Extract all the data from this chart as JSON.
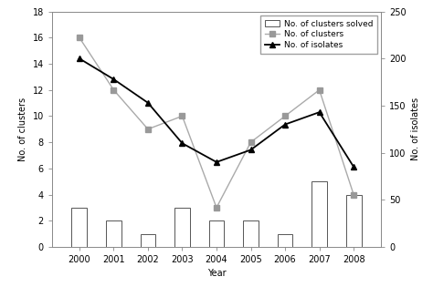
{
  "years": [
    2000,
    2001,
    2002,
    2003,
    2004,
    2005,
    2006,
    2007,
    2008
  ],
  "bars_solved": [
    3,
    2,
    1,
    3,
    2,
    2,
    1,
    5,
    4
  ],
  "clusters": [
    16,
    12,
    9,
    10,
    3,
    8,
    10,
    12,
    4
  ],
  "isolates": [
    200,
    178,
    153,
    110,
    90,
    103,
    130,
    143,
    85
  ],
  "left_ylim": [
    0,
    18
  ],
  "right_ylim": [
    0,
    250
  ],
  "left_yticks": [
    0,
    2,
    4,
    6,
    8,
    10,
    12,
    14,
    16,
    18
  ],
  "right_yticks": [
    0,
    50,
    100,
    150,
    200,
    250
  ],
  "xlabel": "Year",
  "ylabel_left": "No. of clusters",
  "ylabel_right": "No. of isolates",
  "bar_color": "white",
  "bar_edgecolor": "#555555",
  "cluster_line_color": "#aaaaaa",
  "cluster_marker_color": "#999999",
  "isolate_line_color": "black",
  "isolate_marker_color": "black",
  "legend_labels": [
    "No. of clusters solved",
    "No. of clusters",
    "No. of isolates"
  ],
  "background_color": "white",
  "spine_color": "#888888",
  "tick_color": "#555555",
  "label_fontsize": 7,
  "tick_fontsize": 7,
  "legend_fontsize": 6.5
}
